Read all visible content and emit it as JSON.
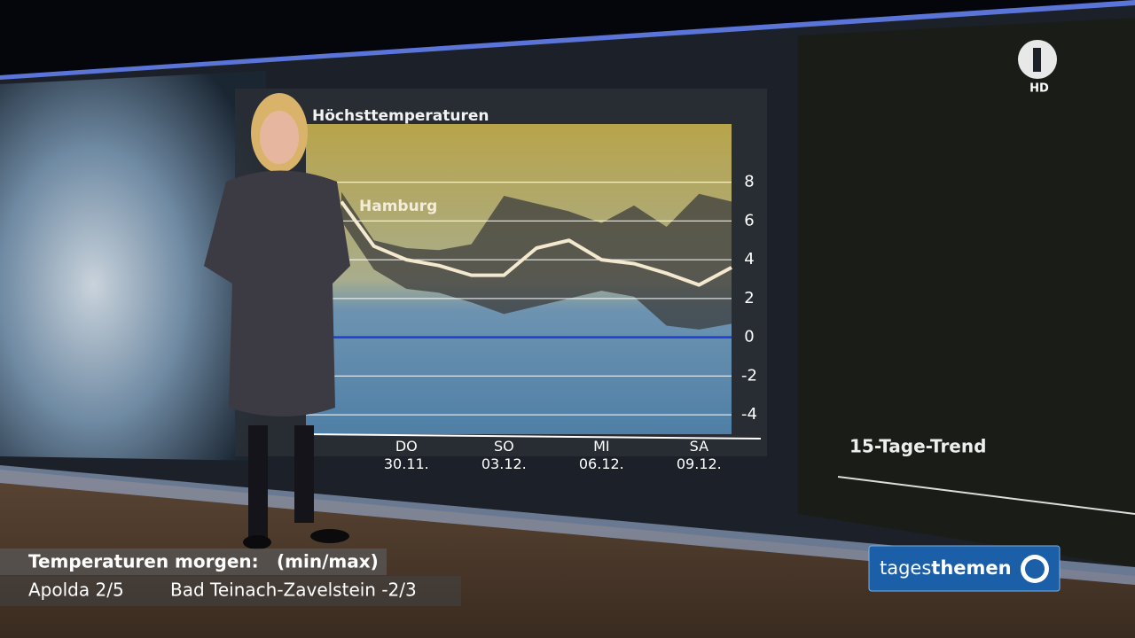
{
  "chart_data": {
    "type": "line",
    "title": "Höchsttemperaturen",
    "categories": [
      null,
      null,
      "DO 30.11.",
      null,
      null,
      "SO 03.12.",
      null,
      null,
      "MI 06.12.",
      null,
      null,
      "SA 09.12.",
      null
    ],
    "series": [
      {
        "name": "Hamburg",
        "color": "#f4e8cf",
        "values": [
          7,
          4.7,
          4,
          3.7,
          3.2,
          3.2,
          4.6,
          5,
          4,
          3.8,
          3.3,
          2.7,
          3.6
        ]
      }
    ],
    "band": {
      "color": "#3c3c3c",
      "high": [
        7.5,
        5,
        4.6,
        4.5,
        4.8,
        7.3,
        6.9,
        6.5,
        5.9,
        6.8,
        5.7,
        7.4,
        7
      ],
      "low": [
        6,
        3.5,
        2.5,
        2.3,
        1.8,
        1.2,
        1.6,
        2,
        2.4,
        2.1,
        0.6,
        0.4,
        0.7
      ]
    },
    "zero_line_color": "#1f3fd0",
    "ylim": [
      -5,
      11
    ],
    "yticks": [
      -4,
      -2,
      0,
      2,
      4,
      6,
      8
    ],
    "grid": true
  },
  "side_panel": {
    "title": "15-Tage-Trend"
  },
  "channel_logo": {
    "badge": "HD"
  },
  "ticker": {
    "heading": "Temperaturen morgen:",
    "unit": "(min/max)",
    "items": [
      "Apolda 2/5",
      "Bad Teinach-Zavelstein -2/3"
    ]
  },
  "show_logo": {
    "prefix": "tages",
    "suffix": "themen"
  }
}
